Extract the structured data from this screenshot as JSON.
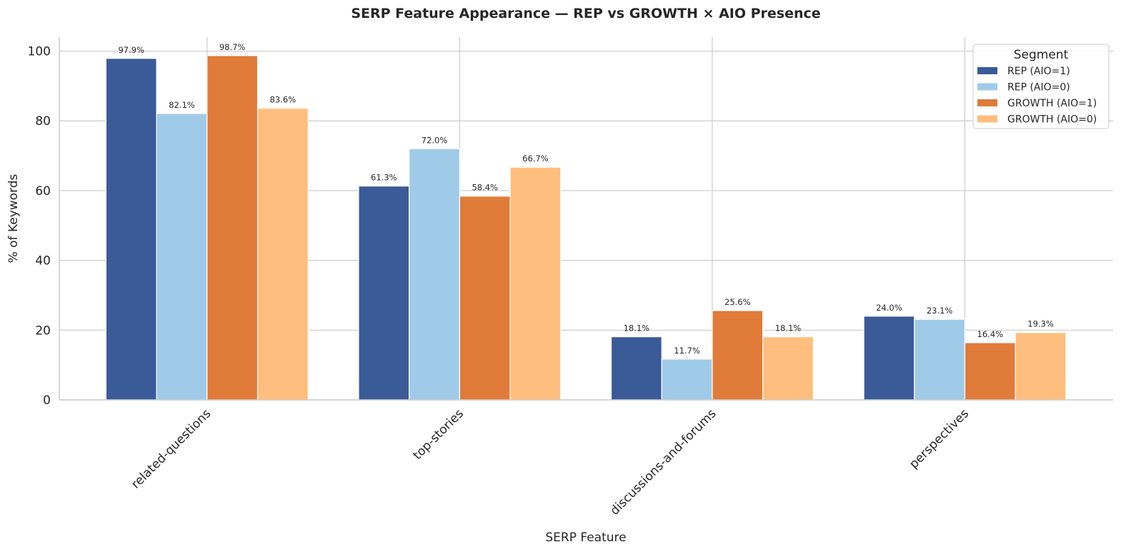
{
  "chart_data": {
    "type": "bar",
    "title": "SERP Feature Appearance — REP vs GROWTH × AIO Presence",
    "xlabel": "SERP Feature",
    "ylabel": "% of Keywords",
    "ylim": [
      0,
      104
    ],
    "yticks": [
      0,
      20,
      40,
      60,
      80,
      100
    ],
    "grid": true,
    "legend": {
      "title": "Segment",
      "placement": "top-right"
    },
    "categories": [
      "related-questions",
      "top-stories",
      "discussions-and-forums",
      "perspectives"
    ],
    "series": [
      {
        "name": "REP (AIO=1)",
        "color": "#3a5a98",
        "values": [
          97.9,
          61.3,
          18.1,
          24.0
        ]
      },
      {
        "name": "REP (AIO=0)",
        "color": "#a0cbe8",
        "values": [
          82.1,
          72.0,
          11.7,
          23.1
        ]
      },
      {
        "name": "GROWTH (AIO=1)",
        "color": "#e07b39",
        "values": [
          98.7,
          58.4,
          25.6,
          16.4
        ]
      },
      {
        "name": "GROWTH (AIO=0)",
        "color": "#ffbe7d",
        "values": [
          83.6,
          66.7,
          18.1,
          19.3
        ]
      }
    ],
    "value_label_format": "{v}%"
  }
}
